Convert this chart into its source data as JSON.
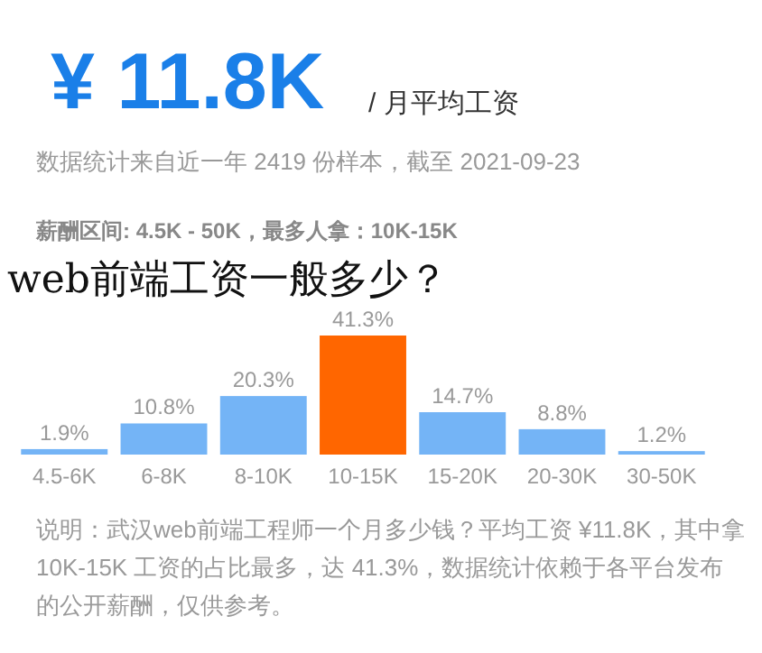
{
  "chart_data": {
    "type": "bar",
    "title": "web前端工资一般多少？",
    "annotations": [
      "¥ 11.8K",
      "/ 月平均工资",
      "数据统计来自近一年 2419 份样本，截至 2021-09-23",
      "薪酬区间: 4.5K - 50K，最多人拿：10K-15K",
      "说明：武汉web前端工程师一个月多少钱？平均工资 ¥11.8K，其中拿 10K-15K 工资的占比最多，达 41.3%，数据统计依赖于各平台发布的公开薪酬，仅供参考。"
    ],
    "categories": [
      "4.5-6K",
      "6-8K",
      "8-10K",
      "10-15K",
      "15-20K",
      "20-30K",
      "30-50K"
    ],
    "values": [
      1.9,
      10.8,
      20.3,
      41.3,
      14.7,
      8.8,
      1.2
    ],
    "value_labels": [
      "1.9%",
      "10.8%",
      "20.3%",
      "41.3%",
      "14.7%",
      "8.8%",
      "1.2%"
    ],
    "colors": [
      "#74b4f6",
      "#74b4f6",
      "#74b4f6",
      "#ff6600",
      "#74b4f6",
      "#74b4f6",
      "#74b4f6"
    ]
  }
}
